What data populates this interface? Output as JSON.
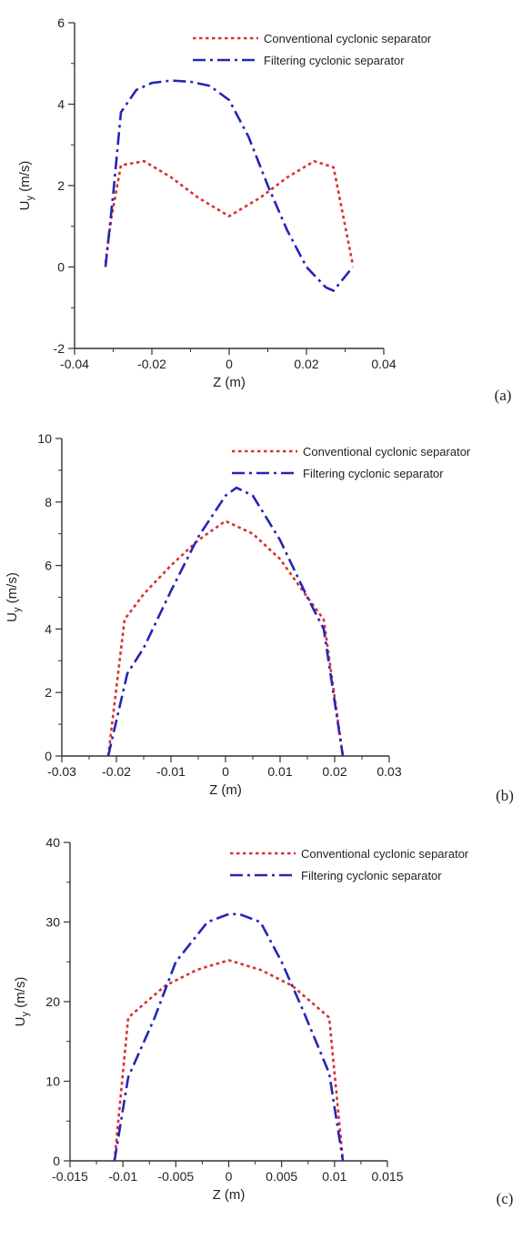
{
  "colors": {
    "conventional": "#d93030",
    "filtering": "#2525b8",
    "axis": "#333333"
  },
  "chart_data": [
    {
      "type": "line",
      "panel_label": "(a)",
      "xlabel": "Z (m)",
      "ylabel": "U",
      "ylabel_sub": "y",
      "ylabel_unit": " (m/s)",
      "xlim": [
        -0.04,
        0.04
      ],
      "ylim": [
        -2,
        6
      ],
      "xticks": [
        -0.04,
        -0.02,
        0,
        0.02,
        0.04
      ],
      "yticks": [
        -2,
        0,
        2,
        4,
        6
      ],
      "xtick_labels": [
        "-0.04",
        "-0.02",
        "0",
        "0.02",
        "0.04"
      ],
      "ytick_labels": [
        "-2",
        "0",
        "2",
        "4",
        "6"
      ],
      "legend": "top-right",
      "series": [
        {
          "name": "Conventional cyclonic separator",
          "style": "dotted",
          "x": [
            -0.032,
            -0.0305,
            -0.028,
            -0.022,
            -0.015,
            -0.008,
            0,
            0.008,
            0.015,
            0.022,
            0.027,
            0.032
          ],
          "y": [
            0.1,
            1.2,
            2.5,
            2.6,
            2.2,
            1.7,
            1.25,
            1.7,
            2.2,
            2.6,
            2.45,
            0.05
          ]
        },
        {
          "name": "Filtering cyclonic separator",
          "style": "dashdot",
          "x": [
            -0.032,
            -0.03,
            -0.028,
            -0.024,
            -0.02,
            -0.015,
            -0.01,
            -0.005,
            0,
            0.005,
            0.01,
            0.015,
            0.02,
            0.025,
            0.027,
            0.032
          ],
          "y": [
            0.0,
            1.8,
            3.8,
            4.35,
            4.52,
            4.58,
            4.55,
            4.45,
            4.1,
            3.2,
            2.0,
            0.9,
            0.0,
            -0.5,
            -0.58,
            0.0
          ]
        }
      ]
    },
    {
      "type": "line",
      "panel_label": "(b)",
      "xlabel": "Z (m)",
      "ylabel": "U",
      "ylabel_sub": "y",
      "ylabel_unit": " (m/s)",
      "xlim": [
        -0.03,
        0.03
      ],
      "ylim": [
        0,
        10
      ],
      "xticks": [
        -0.03,
        -0.02,
        -0.01,
        0,
        0.01,
        0.02,
        0.03
      ],
      "yticks": [
        0,
        2,
        4,
        6,
        8,
        10
      ],
      "xtick_labels": [
        "-0.03",
        "-0.02",
        "-0.01",
        "0",
        "0.01",
        "0.02",
        "0.03"
      ],
      "ytick_labels": [
        "0",
        "2",
        "4",
        "6",
        "8",
        "10"
      ],
      "legend": "top-right",
      "series": [
        {
          "name": "Conventional cyclonic separator",
          "style": "dotted",
          "x": [
            -0.0215,
            -0.0185,
            -0.015,
            -0.01,
            -0.005,
            0,
            0.005,
            0.01,
            0.015,
            0.018,
            0.0215
          ],
          "y": [
            0.0,
            4.3,
            5.1,
            6.0,
            6.8,
            7.4,
            7.0,
            6.2,
            5.0,
            4.3,
            0.0
          ]
        },
        {
          "name": "Filtering cyclonic separator",
          "style": "dashdot",
          "x": [
            -0.0215,
            -0.018,
            -0.015,
            -0.01,
            -0.005,
            0,
            0.002,
            0.005,
            0.01,
            0.015,
            0.018,
            0.0215
          ],
          "y": [
            0.0,
            2.6,
            3.4,
            5.2,
            6.9,
            8.2,
            8.45,
            8.2,
            6.8,
            5.0,
            4.0,
            0.0
          ]
        }
      ]
    },
    {
      "type": "line",
      "panel_label": "(c)",
      "xlabel": "Z (m)",
      "ylabel": "U",
      "ylabel_sub": "y",
      "ylabel_unit": " (m/s)",
      "xlim": [
        -0.015,
        0.015
      ],
      "ylim": [
        0,
        40
      ],
      "xticks": [
        -0.015,
        -0.01,
        -0.005,
        0,
        0.005,
        0.01,
        0.015
      ],
      "yticks": [
        0,
        10,
        20,
        30,
        40
      ],
      "xtick_labels": [
        "-0.015",
        "-0.01",
        "-0.005",
        "0",
        "0.005",
        "0.01",
        "0.015"
      ],
      "ytick_labels": [
        "0",
        "10",
        "20",
        "30",
        "40"
      ],
      "legend": "top-right",
      "series": [
        {
          "name": "Conventional cyclonic separator",
          "style": "dotted",
          "x": [
            -0.0108,
            -0.0095,
            -0.006,
            -0.003,
            0,
            0.003,
            0.006,
            0.0095,
            0.0108
          ],
          "y": [
            0.0,
            18.0,
            22.0,
            24.0,
            25.2,
            24.0,
            22.0,
            18.0,
            0.0
          ]
        },
        {
          "name": "Filtering cyclonic separator",
          "style": "dashdot",
          "x": [
            -0.0108,
            -0.0095,
            -0.007,
            -0.005,
            -0.002,
            0,
            0.001,
            0.003,
            0.005,
            0.007,
            0.0095,
            0.0108
          ],
          "y": [
            0.0,
            10.5,
            18.0,
            25.0,
            30.0,
            31.0,
            31.0,
            30.0,
            25.0,
            19.0,
            11.0,
            0.0
          ]
        }
      ]
    }
  ]
}
